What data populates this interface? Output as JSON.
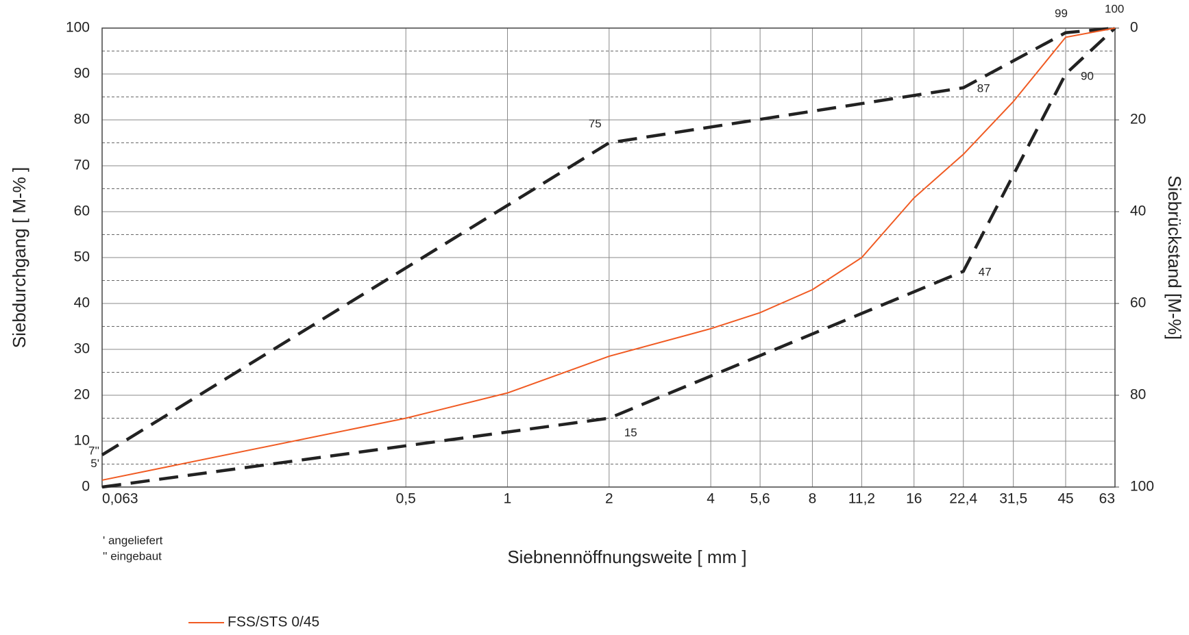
{
  "chart_data": {
    "type": "line",
    "xscale": "log",
    "grid": true,
    "xlabel": "Siebnennöffnungsweite [ mm ]",
    "ylabel": "Siebdurchgang [ M-% ]",
    "y2label": "Siebrückstand [M-%]",
    "xlim": [
      0.063,
      63
    ],
    "xticks": [
      {
        "value": 0.063,
        "label": "0,063"
      },
      {
        "value": 0.5,
        "label": "0,5"
      },
      1,
      2,
      4,
      {
        "value": 5.6,
        "label": "5,6"
      },
      8,
      {
        "value": 11.2,
        "label": "11,2"
      },
      16,
      {
        "value": 22.4,
        "label": "22,4"
      },
      {
        "value": 31.5,
        "label": "31,5"
      },
      45,
      63
    ],
    "ylim": [
      0,
      100
    ],
    "yticks": [
      0,
      10,
      20,
      30,
      40,
      50,
      60,
      70,
      80,
      90,
      100
    ],
    "y_minor_grid": [
      5,
      15,
      25,
      35,
      45,
      55,
      65,
      75,
      85,
      95
    ],
    "y2lim": [
      100,
      0
    ],
    "y2ticks": [
      0,
      20,
      40,
      60,
      80,
      100
    ],
    "series": [
      {
        "name": "FSS/STS 0/45",
        "color": "#f05a22",
        "x": [
          0.063,
          0.5,
          1,
          2,
          4,
          5.6,
          8,
          11.2,
          16,
          22.4,
          31.5,
          45,
          63
        ],
        "values": [
          1.5,
          15,
          20.5,
          28.5,
          34.5,
          38,
          43,
          50,
          63,
          72.5,
          84,
          98,
          100
        ]
      }
    ],
    "limit_lines": [
      {
        "color": "#222222",
        "x": [
          0.063,
          2,
          22.4,
          45,
          63
        ],
        "values": [
          7,
          75,
          87,
          99,
          100
        ],
        "value_labels": [
          "7''",
          "75",
          "87",
          "99",
          "100"
        ]
      },
      {
        "color": "#222222",
        "x": [
          0.063,
          2,
          22.4,
          45,
          63
        ],
        "values": [
          0,
          15,
          47,
          90,
          100
        ],
        "value_labels": [
          null,
          "15",
          "47",
          "90",
          null
        ]
      }
    ],
    "annotations": [
      {
        "label": "5'",
        "value": 5
      }
    ],
    "notes": [
      "' angeliefert",
      "'' eingebaut"
    ]
  }
}
